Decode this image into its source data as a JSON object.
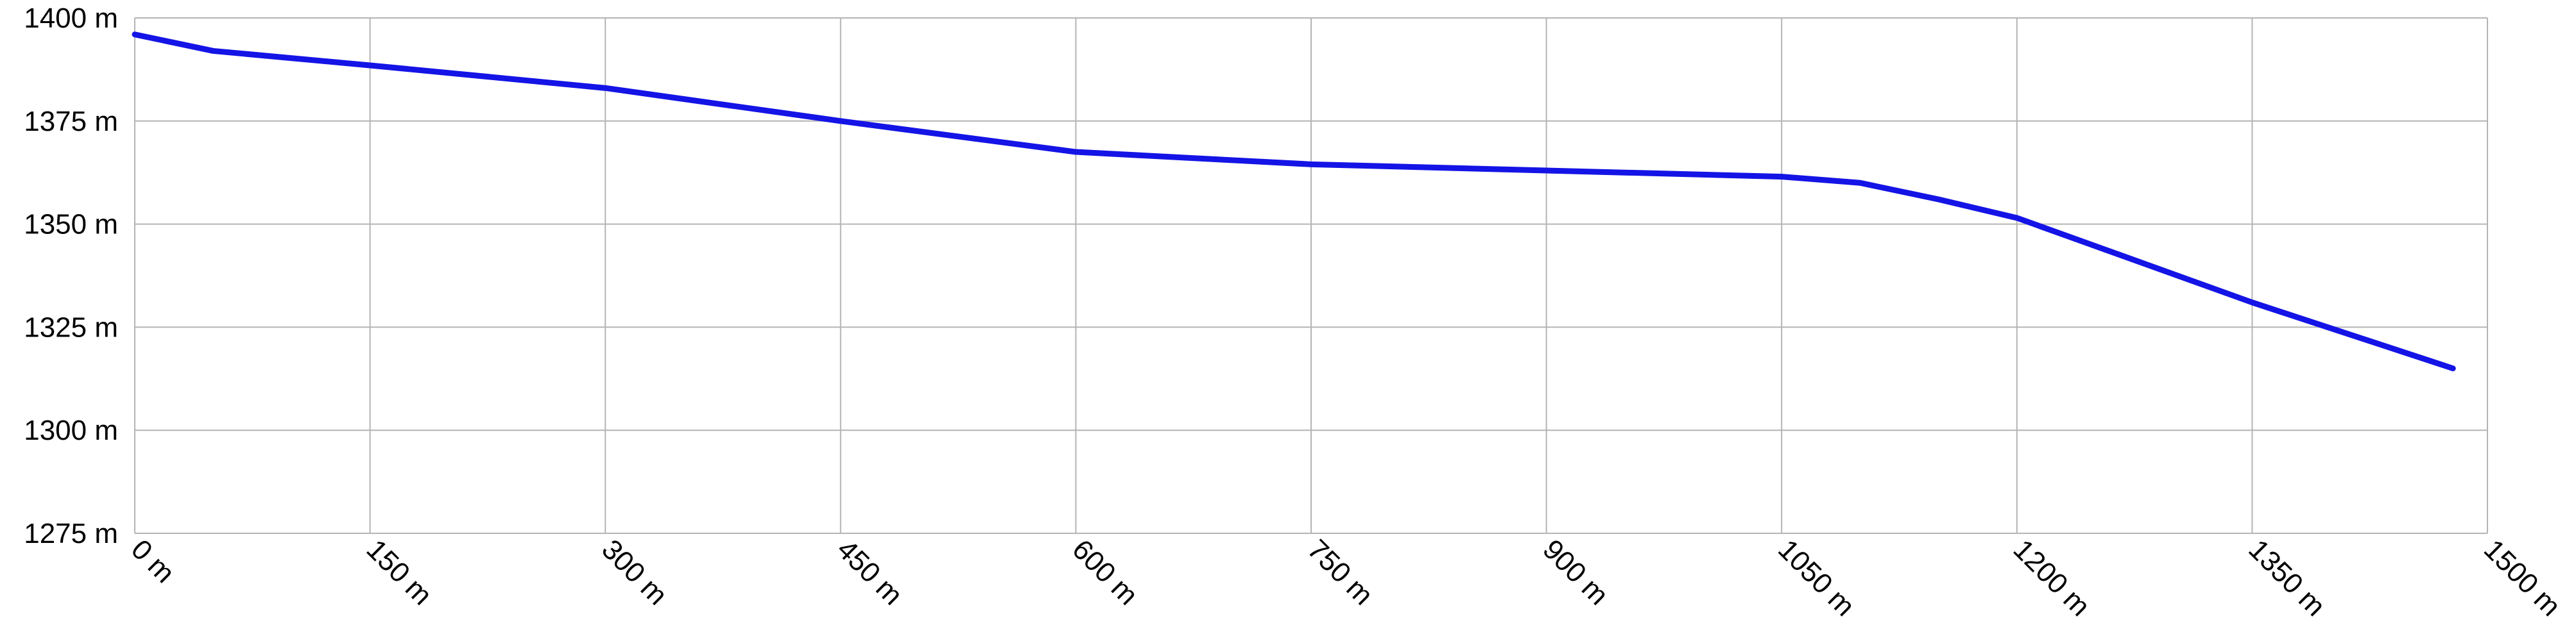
{
  "chart_data": {
    "type": "line",
    "x": [
      0,
      50,
      150,
      300,
      450,
      600,
      750,
      900,
      1000,
      1050,
      1100,
      1150,
      1200,
      1350,
      1478
    ],
    "series": [
      {
        "color": "#1414e6",
        "values": [
          1396,
          1392,
          1388.5,
          1383,
          1375,
          1367.5,
          1364.5,
          1363,
          1362,
          1361.5,
          1360,
          1356,
          1351.5,
          1331,
          1315
        ]
      }
    ],
    "xlim": [
      0,
      1500
    ],
    "xticks": [
      {
        "value": 0,
        "label": "0 m"
      },
      {
        "value": 150,
        "label": "150 m"
      },
      {
        "value": 300,
        "label": "300 m"
      },
      {
        "value": 450,
        "label": "450 m"
      },
      {
        "value": 600,
        "label": "600 m"
      },
      {
        "value": 750,
        "label": "750 m"
      },
      {
        "value": 900,
        "label": "900 m"
      },
      {
        "value": 1050,
        "label": "1050 m"
      },
      {
        "value": 1200,
        "label": "1200 m"
      },
      {
        "value": 1350,
        "label": "1350 m"
      },
      {
        "value": 1500,
        "label": "1500 m"
      }
    ],
    "ylim": [
      1275,
      1400
    ],
    "yticks": [
      {
        "value": 1275,
        "label": "1275 m"
      },
      {
        "value": 1300,
        "label": "1300 m"
      },
      {
        "value": 1325,
        "label": "1325 m"
      },
      {
        "value": 1350,
        "label": "1350 m"
      },
      {
        "value": 1375,
        "label": "1375 m"
      },
      {
        "value": 1400,
        "label": "1400 m"
      }
    ],
    "grid": true
  }
}
